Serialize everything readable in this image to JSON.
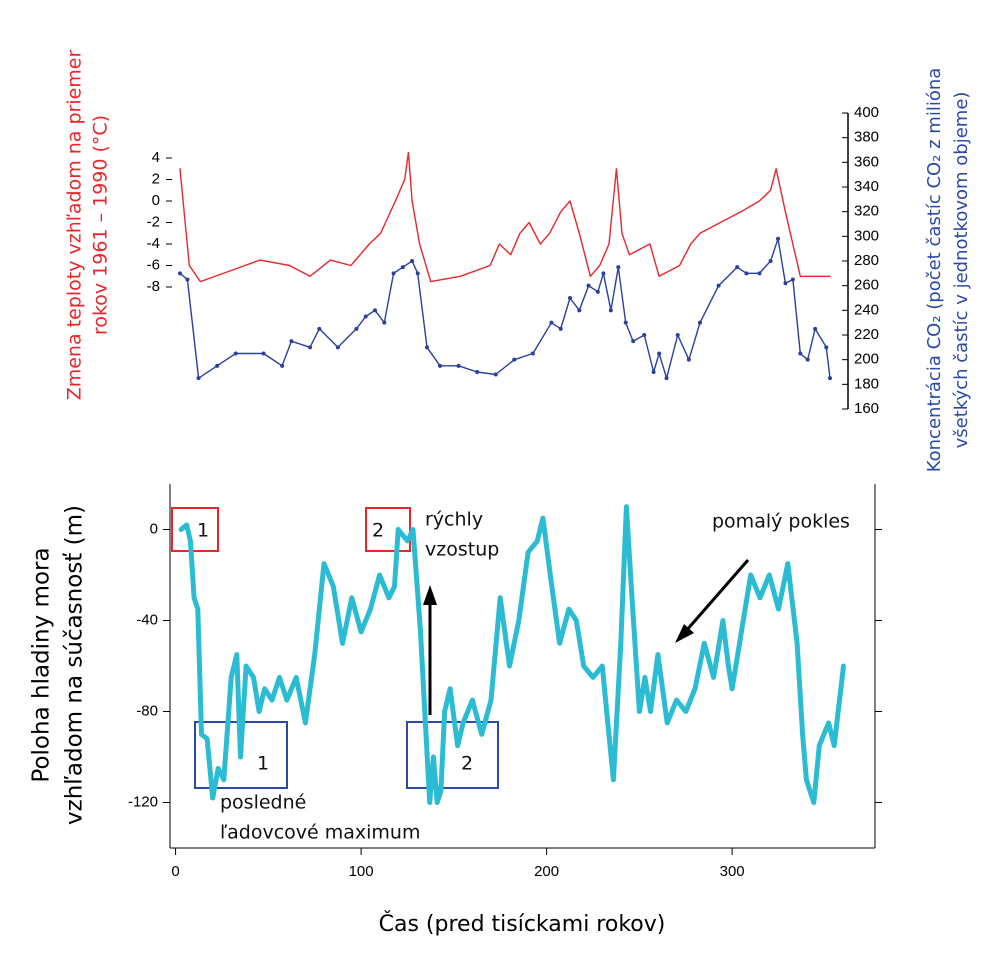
{
  "chart_data": [
    {
      "type": "line",
      "y_label": [
        "Zmena teploty vzhľadom na priemer",
        "rokov 1961 – 1990 (°C)"
      ],
      "y2_label": [
        "Koncentrácia CO₂ (počet častíc CO₂ z milióna",
        "všetkých častíc v jednotkovom objeme)"
      ],
      "y_label_color": "#e8262b",
      "y2_label_color": "#2b4aa8",
      "xlim": [
        0,
        350
      ],
      "ylim": [
        -8,
        4
      ],
      "yticks": [
        4,
        2,
        0,
        -2,
        -4,
        -6,
        -8
      ],
      "y2lim": [
        160,
        400
      ],
      "y2ticks": [
        400,
        380,
        360,
        340,
        320,
        300,
        280,
        260,
        240,
        220,
        200,
        180,
        160
      ],
      "series": [
        {
          "color": "#e8262b",
          "markers": false,
          "x": [
            0,
            5,
            11,
            27,
            43,
            59,
            70,
            81,
            92,
            102,
            108,
            116,
            121,
            123,
            125,
            129,
            135,
            151,
            167,
            172,
            178,
            183,
            188,
            194,
            199,
            205,
            210,
            215,
            221,
            226,
            231,
            235,
            238,
            242,
            253,
            258,
            269,
            275,
            280,
            291,
            302,
            312,
            318,
            321,
            326,
            334,
            350
          ],
          "values": [
            3,
            -6,
            -7.5,
            -6.5,
            -5.5,
            -6,
            -7,
            -5.5,
            -6,
            -4,
            -3,
            0,
            2,
            4.5,
            0,
            -4,
            -7.5,
            -7,
            -6,
            -4,
            -5,
            -3,
            -2,
            -4,
            -3,
            -1,
            0,
            -3,
            -7,
            -6,
            -4,
            3,
            -3,
            -5,
            -4,
            -7,
            -6,
            -4,
            -3,
            -2,
            -1,
            0,
            1,
            3,
            -1,
            -7,
            -7
          ]
        },
        {
          "color": "#2b3f9e",
          "markers": true,
          "axis": "y2",
          "x": [
            0,
            4,
            10,
            20,
            30,
            45,
            55,
            60,
            70,
            75,
            85,
            95,
            100,
            105,
            110,
            115,
            120,
            125,
            128,
            133,
            140,
            150,
            160,
            170,
            180,
            190,
            200,
            205,
            210,
            215,
            220,
            225,
            228,
            232,
            236,
            240,
            244,
            250,
            255,
            258,
            262,
            268,
            274,
            280,
            290,
            300,
            305,
            312,
            318,
            322,
            326,
            330,
            334,
            338,
            342,
            348,
            350
          ],
          "values": [
            270,
            265,
            185,
            195,
            205,
            205,
            195,
            215,
            210,
            225,
            210,
            225,
            235,
            240,
            230,
            270,
            275,
            280,
            270,
            210,
            195,
            195,
            190,
            188,
            200,
            205,
            230,
            225,
            250,
            240,
            260,
            255,
            270,
            240,
            275,
            230,
            215,
            220,
            190,
            205,
            185,
            220,
            200,
            230,
            260,
            275,
            270,
            270,
            280,
            298,
            262,
            265,
            205,
            200,
            225,
            210,
            185
          ]
        }
      ]
    },
    {
      "type": "line",
      "y_label": [
        "Poloha hladiny mora",
        "vzhľadom na súčasnosť (m)"
      ],
      "x_label": "Čas (pred tisíckami rokov)",
      "xlim": [
        -3,
        377
      ],
      "xticks": [
        0,
        100,
        200,
        300
      ],
      "ylim": [
        -140,
        20
      ],
      "yticks": [
        0,
        -40,
        -80,
        -120
      ],
      "series": [
        {
          "color": "#2bbcd4",
          "x": [
            3,
            6,
            8,
            10,
            12,
            14,
            17,
            20,
            23,
            26,
            30,
            33,
            35,
            38,
            42,
            45,
            48,
            52,
            56,
            60,
            65,
            70,
            75,
            80,
            85,
            90,
            95,
            100,
            105,
            110,
            115,
            118,
            120,
            125,
            128,
            132,
            135,
            137,
            139,
            141,
            143,
            145,
            148,
            152,
            155,
            160,
            165,
            170,
            175,
            180,
            185,
            190,
            195,
            198,
            202,
            207,
            212,
            216,
            220,
            225,
            230,
            233,
            236,
            240,
            243,
            246,
            250,
            253,
            256,
            260,
            265,
            270,
            275,
            280,
            285,
            290,
            295,
            298,
            300,
            305,
            310,
            315,
            320,
            325,
            330,
            335,
            338,
            340,
            344,
            347,
            352,
            355,
            360
          ],
          "values": [
            0,
            2,
            -5,
            -30,
            -35,
            -90,
            -92,
            -118,
            -105,
            -110,
            -65,
            -55,
            -100,
            -60,
            -65,
            -80,
            -70,
            -75,
            -65,
            -75,
            -65,
            -85,
            -55,
            -15,
            -25,
            -50,
            -30,
            -45,
            -35,
            -20,
            -30,
            -25,
            0,
            -5,
            0,
            -45,
            -90,
            -120,
            -100,
            -120,
            -115,
            -80,
            -70,
            -95,
            -85,
            -75,
            -90,
            -75,
            -30,
            -60,
            -40,
            -10,
            -5,
            5,
            -20,
            -50,
            -35,
            -40,
            -60,
            -65,
            -60,
            -85,
            -110,
            -50,
            10,
            -30,
            -80,
            -65,
            -80,
            -55,
            -85,
            -75,
            -80,
            -70,
            -50,
            -65,
            -40,
            -60,
            -70,
            -45,
            -20,
            -30,
            -20,
            -35,
            -15,
            -50,
            -90,
            -110,
            -120,
            -95,
            -85,
            -95,
            -60
          ]
        }
      ],
      "annotations": [
        "1",
        "2",
        "1",
        "2",
        "rýchly",
        "vzostup",
        "pomalý pokles",
        "posledné",
        "ľadovcové maximum"
      ]
    }
  ]
}
